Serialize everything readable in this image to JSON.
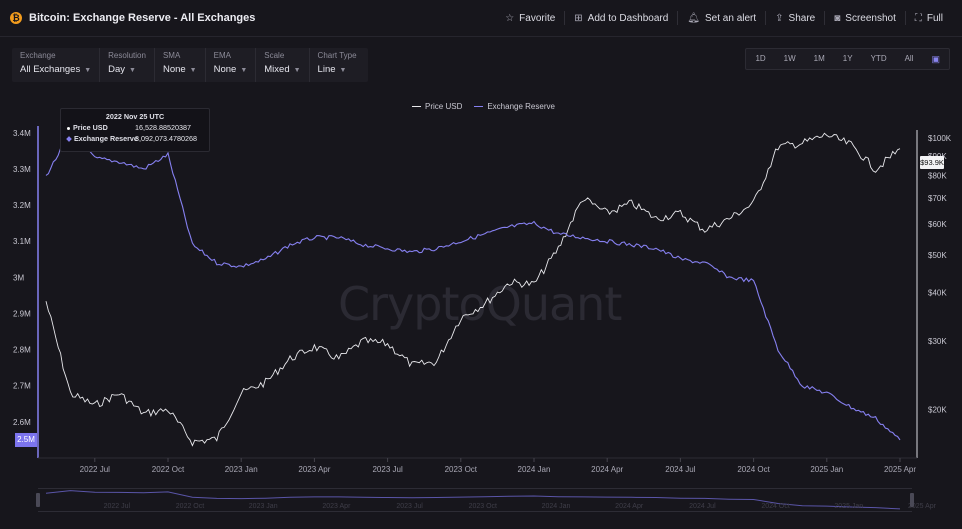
{
  "header": {
    "logo_glyph": "₿",
    "title": "Bitcoin: Exchange Reserve - All Exchanges",
    "actions": [
      {
        "label": "Favorite",
        "icon": "star-icon",
        "glyph": "☆"
      },
      {
        "label": "Add to Dashboard",
        "icon": "dashboard-icon",
        "glyph": "⊞"
      },
      {
        "label": "Set an alert",
        "icon": "bell-icon",
        "glyph": "🔔︎"
      },
      {
        "label": "Share",
        "icon": "share-icon",
        "glyph": "⇪"
      },
      {
        "label": "Screenshot",
        "icon": "camera-icon",
        "glyph": "◙"
      },
      {
        "label": "Full",
        "icon": "expand-icon",
        "glyph": "⛶"
      }
    ]
  },
  "controls": [
    {
      "label": "Exchange",
      "value": "All Exchanges"
    },
    {
      "label": "Resolution",
      "value": "Day"
    },
    {
      "label": "SMA",
      "value": "None"
    },
    {
      "label": "EMA",
      "value": "None"
    },
    {
      "label": "Scale",
      "value": "Mixed"
    },
    {
      "label": "Chart Type",
      "value": "Line"
    }
  ],
  "ranges": [
    "1D",
    "1W",
    "1M",
    "1Y",
    "YTD",
    "All"
  ],
  "calendar_icon": "calendar-icon",
  "tooltip": {
    "title": "2022 Nov 25 UTC",
    "price_label": "Price USD",
    "price_value": "16,528.88520387",
    "reserve_label": "Exchange Reserve",
    "reserve_value": "3,092,073.4780268"
  },
  "watermark": "CryptoQuant",
  "badges": {
    "left": "2.5M",
    "right": "$93.9K"
  },
  "colors": {
    "price": "#e8e8ec",
    "reserve": "#8680f0",
    "background": "#17161c"
  },
  "chart_data": {
    "type": "line",
    "legend_placement": "top-center",
    "x": [
      "2022-05",
      "2022-06",
      "2022-07",
      "2022-08",
      "2022-09",
      "2022-10",
      "2022-11",
      "2022-12",
      "2023-01",
      "2023-02",
      "2023-03",
      "2023-04",
      "2023-05",
      "2023-06",
      "2023-07",
      "2023-08",
      "2023-09",
      "2023-10",
      "2023-11",
      "2023-12",
      "2024-01",
      "2024-02",
      "2024-03",
      "2024-04",
      "2024-05",
      "2024-06",
      "2024-07",
      "2024-08",
      "2024-09",
      "2024-10",
      "2024-11",
      "2024-12",
      "2025-01",
      "2025-02",
      "2025-03",
      "2025-04"
    ],
    "x_tick_labels": [
      "2022 Jul",
      "2022 Oct",
      "2023 Jan",
      "2023 Apr",
      "2023 Jul",
      "2023 Oct",
      "2024 Jan",
      "2024 Apr",
      "2024 Jul",
      "2024 Oct",
      "2025 Jan",
      "2025 Apr"
    ],
    "navigator_tick_labels": [
      "2022 Jul",
      "2022 Oct",
      "2023 Jan",
      "2023 Apr",
      "2023 Jul",
      "2023 Oct",
      "2024 Jan",
      "2024 Apr",
      "2024 Jul",
      "2024 Oct",
      "2025 Jan",
      "2025 Apr"
    ],
    "series": [
      {
        "name": "Price USD",
        "axis": "right",
        "values": [
          38000,
          22000,
          20500,
          22000,
          19500,
          20000,
          16500,
          16800,
          22000,
          23500,
          27000,
          29000,
          27000,
          30000,
          29500,
          26000,
          26500,
          34500,
          37500,
          42500,
          42000,
          52000,
          70000,
          64000,
          68000,
          62000,
          64000,
          58000,
          62000,
          68000,
          95000,
          97000,
          102000,
          96000,
          83000,
          93900
        ]
      },
      {
        "name": "Exchange Reserve",
        "axis": "left",
        "values": [
          3280000,
          3400000,
          3330000,
          3320000,
          3300000,
          3340000,
          3090000,
          3040000,
          3030000,
          3050000,
          3090000,
          3110000,
          3110000,
          3090000,
          3080000,
          3070000,
          3080000,
          3100000,
          3120000,
          3140000,
          3150000,
          3120000,
          3110000,
          3100000,
          3090000,
          3080000,
          3050000,
          3040000,
          3000000,
          2990000,
          2800000,
          2700000,
          2680000,
          2640000,
          2610000,
          2550000
        ]
      }
    ],
    "left_axis": {
      "ticks": [
        "2.6M",
        "2.7M",
        "2.8M",
        "2.9M",
        "3M",
        "3.1M",
        "3.2M",
        "3.3M",
        "3.4M"
      ],
      "ylim": [
        2500000,
        3430000
      ]
    },
    "right_axis": {
      "scale": "log",
      "ticks": [
        "$20K",
        "$30K",
        "$40K",
        "$50K",
        "$60K",
        "$70K",
        "$80K",
        "$90K",
        "$100K"
      ],
      "ylim": [
        15000,
        110000
      ]
    },
    "grid": false
  }
}
